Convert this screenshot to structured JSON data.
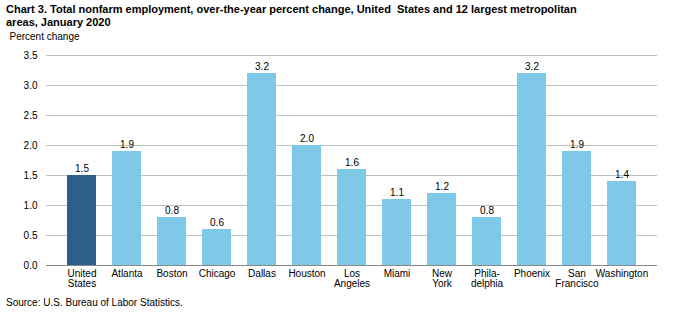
{
  "chart_data": {
    "type": "bar",
    "title": "Chart 3. Total nonfarm employment, over-the-year percent change, United  States and 12 largest metropolitan\nareas, January 2020",
    "ylabel": "Percent change",
    "source": "Source: U.S. Bureau of Labor Statistics.",
    "categories": [
      "United\nStates",
      "Atlanta",
      "Boston",
      "Chicago",
      "Dallas",
      "Houston",
      "Los\nAngeles",
      "Miami",
      "New\nYork",
      "Phila-\ndelphia",
      "Phoenix",
      "San\nFrancisco",
      "Washington"
    ],
    "values": [
      1.5,
      1.9,
      0.8,
      0.6,
      3.2,
      2.0,
      1.6,
      1.1,
      1.2,
      0.8,
      3.2,
      1.9,
      1.4
    ],
    "value_labels": [
      "1.5",
      "1.9",
      "0.8",
      "0.6",
      "3.2",
      "2.0",
      "1.6",
      "1.1",
      "1.2",
      "0.8",
      "3.2",
      "1.9",
      "1.4"
    ],
    "colors": [
      "#2E5F8A",
      "#7EC8E8",
      "#7EC8E8",
      "#7EC8E8",
      "#7EC8E8",
      "#7EC8E8",
      "#7EC8E8",
      "#7EC8E8",
      "#7EC8E8",
      "#7EC8E8",
      "#7EC8E8",
      "#7EC8E8",
      "#7EC8E8"
    ],
    "ylim": [
      0,
      3.5
    ],
    "yticks": [
      {
        "value": 0.0,
        "label": "0.0"
      },
      0.5,
      {
        "value": 1.0,
        "label": "1.0"
      },
      1.5,
      {
        "value": 2.0,
        "label": "2.0"
      },
      2.5,
      {
        "value": 3.0,
        "label": "3.0"
      },
      3.5
    ],
    "grid": true,
    "data_labels": true
  }
}
